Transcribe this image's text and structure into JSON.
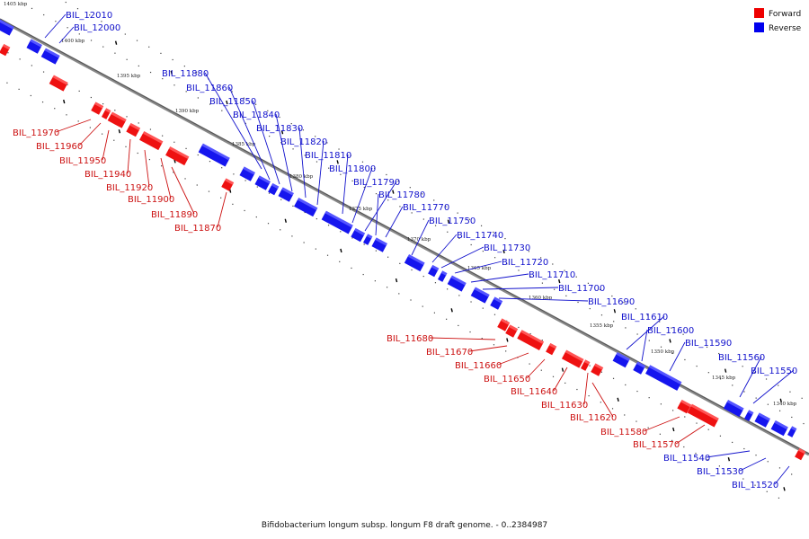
{
  "caption": "Bifidobacterium longum subsp. longum F8 draft genome. - 0..2384987",
  "legend": {
    "forward_label": "Forward",
    "reverse_label": "Reverse",
    "forward_color": "#ee0000",
    "reverse_color": "#0000ee"
  },
  "axis": {
    "kbp_labels": [
      "1405 kbp",
      "1400 kbp",
      "1395 kbp",
      "1390 kbp",
      "1385 kbp",
      "1380 kbp",
      "1375 kbp",
      "1370 kbp",
      "1365 kbp",
      "1360 kbp",
      "1355 kbp",
      "1350 kbp",
      "1345 kbp",
      "1340 kbp"
    ]
  },
  "genes": {
    "reverse": [
      "BIL_12010",
      "BIL_12000",
      "BIL_11880",
      "BIL_11860",
      "BIL_11850",
      "BIL_11840",
      "BIL_11830",
      "BIL_11820",
      "BIL_11810",
      "BIL_11800",
      "BIL_11790",
      "BIL_11780",
      "BIL_11770",
      "BIL_11750",
      "BIL_11740",
      "BIL_11730",
      "BIL_11720",
      "BIL_11710",
      "BIL_11700",
      "BIL_11690",
      "BIL_11610",
      "BIL_11600",
      "BIL_11590",
      "BIL_11560",
      "BIL_11550",
      "BIL_11540",
      "BIL_11530",
      "BIL_11520"
    ],
    "forward": [
      "BIL_11970",
      "BIL_11960",
      "BIL_11950",
      "BIL_11940",
      "BIL_11920",
      "BIL_11900",
      "BIL_11890",
      "BIL_11870",
      "BIL_11680",
      "BIL_11670",
      "BIL_11660",
      "BIL_11650",
      "BIL_11640",
      "BIL_11630",
      "BIL_11620",
      "BIL_11580",
      "BIL_11570"
    ]
  }
}
